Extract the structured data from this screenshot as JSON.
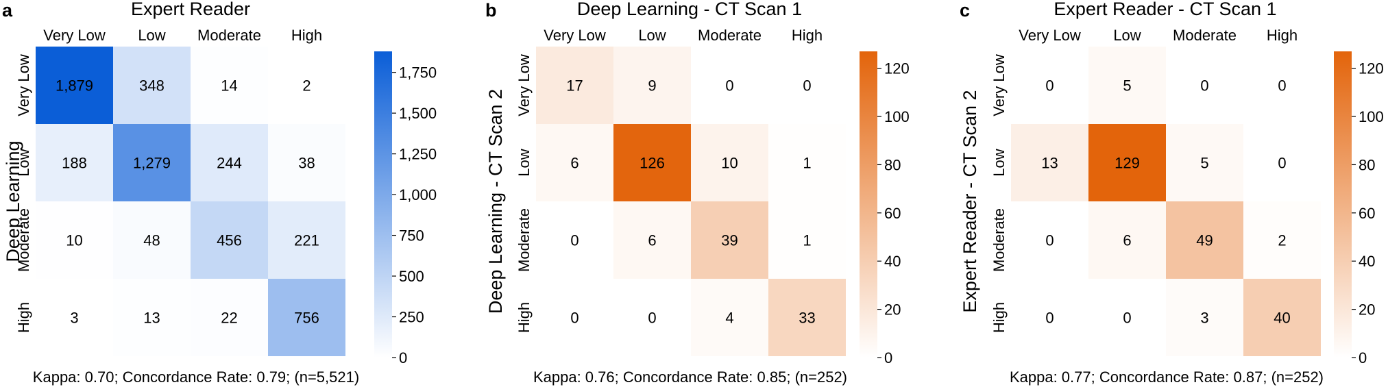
{
  "chart_data": [
    {
      "type": "heatmap",
      "panel_label": "a",
      "title": "Expert Reader",
      "xlabel": "",
      "ylabel": "Deep Learning",
      "categories": [
        "Very Low",
        "Low",
        "Moderate",
        "High"
      ],
      "values": [
        [
          1879,
          348,
          14,
          2
        ],
        [
          188,
          1279,
          244,
          38
        ],
        [
          10,
          48,
          456,
          221
        ],
        [
          3,
          13,
          22,
          756
        ]
      ],
      "value_labels": [
        [
          "1,879",
          "348",
          "14",
          "2"
        ],
        [
          "188",
          "1,279",
          "244",
          "38"
        ],
        [
          "10",
          "48",
          "456",
          "221"
        ],
        [
          "3",
          "13",
          "22",
          "756"
        ]
      ],
      "colormap": "blue",
      "color_low": "#ffffff",
      "color_high": "#0b5ed7",
      "vmin": 0,
      "vmax": 1879,
      "colorbar_ticks": [
        0,
        250,
        500,
        750,
        1000,
        1250,
        1500,
        1750
      ],
      "colorbar_tick_labels": [
        "0",
        "250",
        "500",
        "750",
        "1,000",
        "1,250",
        "1,500",
        "1,750"
      ],
      "caption": "Kappa: 0.70; Concordance Rate: 0.79; (n=5,521)"
    },
    {
      "type": "heatmap",
      "panel_label": "b",
      "title": "Deep Learning - CT Scan 1",
      "xlabel": "",
      "ylabel": "Deep Learning - CT Scan 2",
      "categories": [
        "Very Low",
        "Low",
        "Moderate",
        "High"
      ],
      "values": [
        [
          17,
          9,
          0,
          0
        ],
        [
          6,
          126,
          10,
          1
        ],
        [
          0,
          6,
          39,
          1
        ],
        [
          0,
          0,
          4,
          33
        ]
      ],
      "value_labels": [
        [
          "17",
          "9",
          "0",
          "0"
        ],
        [
          "6",
          "126",
          "10",
          "1"
        ],
        [
          "0",
          "6",
          "39",
          "1"
        ],
        [
          "0",
          "0",
          "4",
          "33"
        ]
      ],
      "colormap": "orange",
      "color_low": "#ffffff",
      "color_high": "#e3640b",
      "vmin": 0,
      "vmax": 127,
      "colorbar_ticks": [
        0,
        20,
        40,
        60,
        80,
        100,
        120
      ],
      "colorbar_tick_labels": [
        "0",
        "20",
        "40",
        "60",
        "80",
        "100",
        "120"
      ],
      "caption": "Kappa: 0.76; Concordance Rate: 0.85; (n=252)"
    },
    {
      "type": "heatmap",
      "panel_label": "c",
      "title": "Expert Reader - CT Scan 1",
      "xlabel": "",
      "ylabel": "Expert Reader - CT Scan 2",
      "categories": [
        "Very Low",
        "Low",
        "Moderate",
        "High"
      ],
      "values": [
        [
          0,
          5,
          0,
          0
        ],
        [
          13,
          129,
          5,
          0
        ],
        [
          0,
          6,
          49,
          2
        ],
        [
          0,
          0,
          3,
          40
        ]
      ],
      "value_labels": [
        [
          "0",
          "5",
          "0",
          "0"
        ],
        [
          "13",
          "129",
          "5",
          "0"
        ],
        [
          "0",
          "6",
          "49",
          "2"
        ],
        [
          "0",
          "0",
          "3",
          "40"
        ]
      ],
      "colormap": "orange",
      "color_low": "#ffffff",
      "color_high": "#e3640b",
      "vmin": 0,
      "vmax": 127,
      "colorbar_ticks": [
        0,
        20,
        40,
        60,
        80,
        100,
        120
      ],
      "colorbar_tick_labels": [
        "0",
        "20",
        "40",
        "60",
        "80",
        "100",
        "120"
      ],
      "caption": "Kappa: 0.77; Concordance Rate: 0.87; (n=252)"
    }
  ]
}
